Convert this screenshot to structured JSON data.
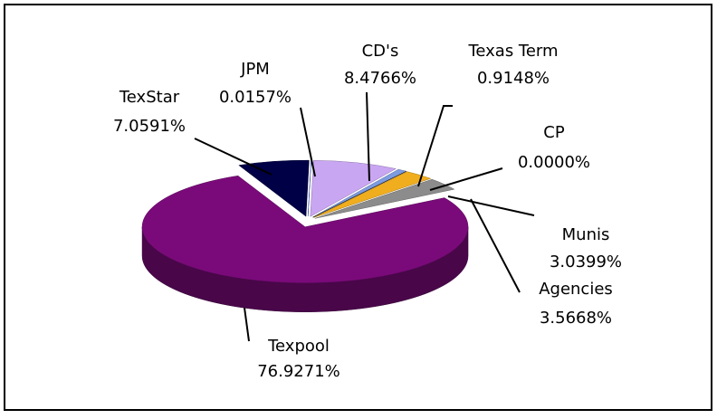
{
  "chart_data": {
    "type": "pie",
    "categories": [
      "CD's",
      "Texas Term",
      "CP",
      "Munis",
      "Agencies",
      "Texpool",
      "TexStar",
      "JPM"
    ],
    "values": [
      8.4766,
      0.9148,
      0.0,
      3.0399,
      3.5668,
      76.9271,
      7.0591,
      0.0157
    ],
    "value_labels": [
      "8.4766%",
      "0.9148%",
      "0.0000%",
      "3.0399%",
      "3.5668%",
      "76.9271%",
      "7.0591%",
      "0.0157%"
    ],
    "colors": [
      "#c9a6f2",
      "#7d9be0",
      "#1a1a1a",
      "#f0ad1e",
      "#8c8c8c",
      "#7a0a7a",
      "#000046",
      "#2f4fd8"
    ]
  }
}
